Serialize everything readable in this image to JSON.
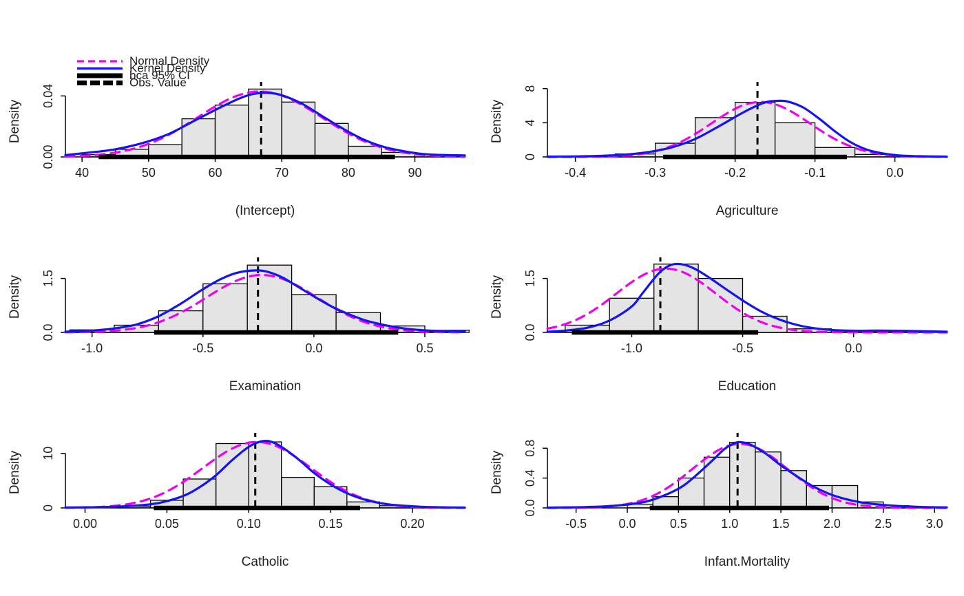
{
  "figure": {
    "background": "#ffffff",
    "rows": 3,
    "cols": 2
  },
  "colors": {
    "normal_density": "#F000F0",
    "kernel_density": "#1414F0",
    "histogram_fill": "#E4E4E4",
    "histogram_stroke": "#000000",
    "ci_bar": "#000000",
    "obs_line": "#000000",
    "axis": "#000000",
    "text": "#1f1f1f"
  },
  "legend": {
    "entries": [
      {
        "label": "Normal Density",
        "style": "magenta-dashed"
      },
      {
        "label": "Kernel Density",
        "style": "blue-solid"
      },
      {
        "label": "bca 95% CI",
        "style": "black-thick"
      },
      {
        "label": "Obs. Value",
        "style": "black-thick-dashed"
      }
    ]
  },
  "chart_data": [
    {
      "type": "bar",
      "subtype": "histogram-with-density",
      "xlabel": "(Intercept)",
      "ylabel": "Density",
      "xlim": [
        37.5,
        97.5
      ],
      "ylim": [
        0,
        0.0465
      ],
      "xticks": [
        40,
        50,
        60,
        70,
        80,
        90
      ],
      "xtick_labels": [
        "40",
        "50",
        "60",
        "70",
        "80",
        "90"
      ],
      "yticks": [
        0,
        0.04
      ],
      "ytick_labels": [
        "0.00",
        "0.04"
      ],
      "hist": {
        "bin_start": 40,
        "bin_width": 5,
        "heights": [
          0.0015,
          0.005,
          0.008,
          0.025,
          0.034,
          0.0445,
          0.036,
          0.022,
          0.007,
          0.003,
          0.0015
        ]
      },
      "normal": {
        "mean": 66.7,
        "sd": 9.3
      },
      "kernel": [
        [
          37.5,
          0.0012
        ],
        [
          41,
          0.0028
        ],
        [
          45,
          0.005
        ],
        [
          49,
          0.009
        ],
        [
          53,
          0.015
        ],
        [
          57,
          0.024
        ],
        [
          61,
          0.033
        ],
        [
          64,
          0.039
        ],
        [
          66,
          0.0415
        ],
        [
          68,
          0.042
        ],
        [
          70,
          0.0405
        ],
        [
          73,
          0.035
        ],
        [
          76,
          0.027
        ],
        [
          79,
          0.019
        ],
        [
          82,
          0.012
        ],
        [
          85,
          0.007
        ],
        [
          88,
          0.004
        ],
        [
          91,
          0.002
        ],
        [
          94,
          0.0013
        ],
        [
          97.5,
          0.001
        ]
      ],
      "ci": [
        42.5,
        87
      ],
      "obs": 66.9,
      "has_legend": true
    },
    {
      "type": "bar",
      "subtype": "histogram-with-density",
      "xlabel": "Agriculture",
      "ylabel": "Density",
      "xlim": [
        -0.435,
        0.065
      ],
      "ylim": [
        0,
        8.3
      ],
      "xticks": [
        -0.4,
        -0.3,
        -0.2,
        -0.1,
        0.0
      ],
      "xtick_labels": [
        "-0.4",
        "-0.3",
        "-0.2",
        "-0.1",
        "0.0"
      ],
      "yticks": [
        0,
        4,
        8
      ],
      "ytick_labels": [
        "0",
        "4",
        "8"
      ],
      "hist": {
        "bin_start": -0.35,
        "bin_width": 0.05,
        "heights": [
          0.35,
          1.6,
          4.6,
          6.4,
          4.0,
          1.1,
          0.3
        ]
      },
      "normal": {
        "mean": -0.168,
        "sd": 0.062
      },
      "kernel": [
        [
          -0.435,
          0.03
        ],
        [
          -0.4,
          0.06
        ],
        [
          -0.37,
          0.12
        ],
        [
          -0.34,
          0.25
        ],
        [
          -0.31,
          0.55
        ],
        [
          -0.28,
          1.1
        ],
        [
          -0.25,
          2.1
        ],
        [
          -0.22,
          3.6
        ],
        [
          -0.19,
          5.2
        ],
        [
          -0.165,
          6.3
        ],
        [
          -0.15,
          6.55
        ],
        [
          -0.135,
          6.5
        ],
        [
          -0.115,
          5.8
        ],
        [
          -0.095,
          4.5
        ],
        [
          -0.075,
          3.0
        ],
        [
          -0.055,
          1.7
        ],
        [
          -0.035,
          0.85
        ],
        [
          -0.015,
          0.4
        ],
        [
          0.005,
          0.18
        ],
        [
          0.03,
          0.08
        ],
        [
          0.065,
          0.03
        ]
      ],
      "ci": [
        -0.29,
        -0.06
      ],
      "obs": -0.172,
      "has_legend": false
    },
    {
      "type": "bar",
      "subtype": "histogram-with-density",
      "xlabel": "Examination",
      "ylabel": "Density",
      "xlim": [
        -1.12,
        0.68
      ],
      "ylim": [
        0,
        1.97
      ],
      "xticks": [
        -1.0,
        -0.5,
        0.0,
        0.5
      ],
      "xtick_labels": [
        "-1.0",
        "-0.5",
        "0.0",
        "0.5"
      ],
      "yticks": [
        0,
        1.5
      ],
      "ytick_labels": [
        "0.0",
        "1.5"
      ],
      "hist": {
        "bin_start": -1.1,
        "bin_width": 0.2,
        "heights": [
          0.07,
          0.2,
          0.6,
          1.35,
          1.87,
          1.05,
          0.55,
          0.18,
          0.06
        ]
      },
      "normal": {
        "mean": -0.235,
        "sd": 0.25
      },
      "kernel": [
        [
          -1.12,
          0.02
        ],
        [
          -1.0,
          0.05
        ],
        [
          -0.9,
          0.11
        ],
        [
          -0.8,
          0.22
        ],
        [
          -0.7,
          0.45
        ],
        [
          -0.6,
          0.8
        ],
        [
          -0.5,
          1.2
        ],
        [
          -0.42,
          1.48
        ],
        [
          -0.35,
          1.65
        ],
        [
          -0.28,
          1.72
        ],
        [
          -0.22,
          1.7
        ],
        [
          -0.15,
          1.55
        ],
        [
          -0.08,
          1.3
        ],
        [
          0.0,
          1.0
        ],
        [
          0.08,
          0.72
        ],
        [
          0.16,
          0.5
        ],
        [
          0.24,
          0.32
        ],
        [
          0.33,
          0.19
        ],
        [
          0.42,
          0.1
        ],
        [
          0.52,
          0.05
        ],
        [
          0.62,
          0.03
        ],
        [
          0.68,
          0.025
        ]
      ],
      "ci": [
        -0.72,
        0.38
      ],
      "obs": -0.252,
      "has_legend": false
    },
    {
      "type": "bar",
      "subtype": "histogram-with-density",
      "xlabel": "Education",
      "ylabel": "Density",
      "xlim": [
        -1.38,
        0.42
      ],
      "ylim": [
        0,
        1.97
      ],
      "xticks": [
        -1.0,
        -0.5,
        0.0
      ],
      "xtick_labels": [
        "-1.0",
        "-0.5",
        "0.0"
      ],
      "yticks": [
        0,
        1.5
      ],
      "ytick_labels": [
        "0.0",
        "1.5"
      ],
      "hist": {
        "bin_start": -1.3,
        "bin_width": 0.2,
        "heights": [
          0.2,
          0.95,
          1.9,
          1.5,
          0.45,
          0.1,
          0.05,
          0.03
        ]
      },
      "normal": {
        "mean": -0.845,
        "sd": 0.225
      },
      "kernel": [
        [
          -1.38,
          0.02
        ],
        [
          -1.3,
          0.05
        ],
        [
          -1.2,
          0.13
        ],
        [
          -1.1,
          0.33
        ],
        [
          -1.0,
          0.72
        ],
        [
          -0.95,
          1.1
        ],
        [
          -0.88,
          1.63
        ],
        [
          -0.83,
          1.86
        ],
        [
          -0.78,
          1.9
        ],
        [
          -0.72,
          1.78
        ],
        [
          -0.65,
          1.52
        ],
        [
          -0.57,
          1.18
        ],
        [
          -0.49,
          0.85
        ],
        [
          -0.41,
          0.56
        ],
        [
          -0.33,
          0.35
        ],
        [
          -0.25,
          0.2
        ],
        [
          -0.17,
          0.11
        ],
        [
          -0.08,
          0.06
        ],
        [
          0.02,
          0.045
        ],
        [
          0.12,
          0.05
        ],
        [
          0.25,
          0.04
        ],
        [
          0.42,
          0.02
        ]
      ],
      "ci": [
        -1.27,
        -0.43
      ],
      "obs": -0.871,
      "has_legend": false
    },
    {
      "type": "bar",
      "subtype": "histogram-with-density",
      "xlabel": "Catholic",
      "ylabel": "Density",
      "xlim": [
        -0.012,
        0.232
      ],
      "ylim": [
        0,
        13
      ],
      "xticks": [
        0.0,
        0.05,
        0.1,
        0.15,
        0.2
      ],
      "xtick_labels": [
        "0.00",
        "0.05",
        "0.10",
        "0.15",
        "0.20"
      ],
      "yticks": [
        0,
        10
      ],
      "ytick_labels": [
        "0",
        "10"
      ],
      "hist": {
        "bin_start": 0.02,
        "bin_width": 0.02,
        "heights": [
          0.3,
          1.4,
          5.3,
          11.8,
          12.1,
          5.6,
          3.9,
          1.1,
          0.4,
          0.12
        ]
      },
      "normal": {
        "mean": 0.105,
        "sd": 0.033
      },
      "kernel": [
        [
          -0.012,
          0.08
        ],
        [
          0.01,
          0.15
        ],
        [
          0.03,
          0.4
        ],
        [
          0.045,
          0.9
        ],
        [
          0.06,
          2.2
        ],
        [
          0.07,
          3.8
        ],
        [
          0.08,
          6.0
        ],
        [
          0.09,
          8.8
        ],
        [
          0.1,
          11.2
        ],
        [
          0.107,
          12.15
        ],
        [
          0.113,
          12.2
        ],
        [
          0.12,
          11.2
        ],
        [
          0.13,
          9.0
        ],
        [
          0.14,
          6.4
        ],
        [
          0.15,
          4.3
        ],
        [
          0.16,
          2.7
        ],
        [
          0.17,
          1.6
        ],
        [
          0.18,
          0.9
        ],
        [
          0.19,
          0.5
        ],
        [
          0.205,
          0.22
        ],
        [
          0.22,
          0.1
        ],
        [
          0.232,
          0.06
        ]
      ],
      "ci": [
        0.042,
        0.168
      ],
      "obs": 0.104,
      "has_legend": false
    },
    {
      "type": "bar",
      "subtype": "histogram-with-density",
      "xlabel": "Infant.Mortality",
      "ylabel": "Density",
      "xlim": [
        -0.78,
        3.12
      ],
      "ylim": [
        0,
        0.95
      ],
      "xticks": [
        -0.5,
        0.0,
        0.5,
        1.0,
        1.5,
        2.0,
        2.5,
        3.0
      ],
      "xtick_labels": [
        "-0.5",
        "0.0",
        "0.5",
        "1.0",
        "1.5",
        "2.0",
        "2.5",
        "3.0"
      ],
      "yticks": [
        0,
        0.4,
        0.8
      ],
      "ytick_labels": [
        "0.0",
        "0.4",
        "0.8"
      ],
      "hist": {
        "bin_start": 0,
        "bin_width": 0.25,
        "heights": [
          0.05,
          0.15,
          0.4,
          0.68,
          0.88,
          0.75,
          0.5,
          0.3,
          0.3,
          0.08,
          0.03
        ]
      },
      "normal": {
        "mean": 1.1,
        "sd": 0.465
      },
      "kernel": [
        [
          -0.78,
          0.004
        ],
        [
          -0.6,
          0.007
        ],
        [
          -0.4,
          0.012
        ],
        [
          -0.2,
          0.022
        ],
        [
          0.0,
          0.045
        ],
        [
          0.2,
          0.09
        ],
        [
          0.4,
          0.19
        ],
        [
          0.55,
          0.3
        ],
        [
          0.7,
          0.47
        ],
        [
          0.85,
          0.66
        ],
        [
          0.95,
          0.79
        ],
        [
          1.05,
          0.87
        ],
        [
          1.12,
          0.88
        ],
        [
          1.2,
          0.85
        ],
        [
          1.35,
          0.73
        ],
        [
          1.5,
          0.57
        ],
        [
          1.65,
          0.43
        ],
        [
          1.8,
          0.3
        ],
        [
          1.95,
          0.2
        ],
        [
          2.1,
          0.13
        ],
        [
          2.3,
          0.07
        ],
        [
          2.5,
          0.04
        ],
        [
          2.7,
          0.022
        ],
        [
          2.9,
          0.012
        ],
        [
          3.12,
          0.007
        ]
      ],
      "ci": [
        0.22,
        1.97
      ],
      "obs": 1.077,
      "has_legend": false
    }
  ]
}
